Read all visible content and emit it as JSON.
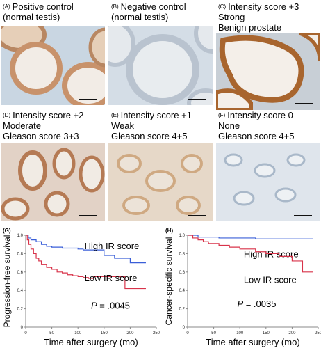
{
  "panels": [
    {
      "letter": "(A)",
      "lines": [
        "Positive control",
        "(normal testis)"
      ]
    },
    {
      "letter": "(B)",
      "lines": [
        "Negative control",
        "(normal testis)"
      ]
    },
    {
      "letter": "(C)",
      "lines": [
        "Intensity score +3",
        "Strong",
        "Benign prostate"
      ]
    },
    {
      "letter": "(D)",
      "lines": [
        "Intensity score +2",
        "Moderate",
        "Gleason score 3+3"
      ]
    },
    {
      "letter": "(E)",
      "lines": [
        "Intensity score +1",
        "Weak",
        "Gleason score 4+5"
      ]
    },
    {
      "letter": "(F)",
      "lines": [
        "Intensity score 0",
        "None",
        "Gleason score 4+5"
      ]
    }
  ],
  "chart_data": [
    {
      "type": "line",
      "panel_label": "(G)",
      "xlabel": "Time after surgery (mo)",
      "ylabel": "Progression-free survival",
      "xlim": [
        0,
        250
      ],
      "ylim": [
        0,
        1.0
      ],
      "x_ticks": [
        "0",
        "50",
        "100",
        "150",
        "200",
        "250"
      ],
      "y_ticks": [
        "0",
        "0.2",
        "0.4",
        "0.6",
        "0.8",
        "1.0"
      ],
      "annotation": {
        "prefix": "P",
        "text": " = .0045"
      },
      "series": [
        {
          "name": "High IR score",
          "color": "#3a5fd8",
          "x": [
            0,
            5,
            10,
            20,
            30,
            40,
            50,
            70,
            100,
            110,
            150,
            170,
            200,
            230
          ],
          "y": [
            1.0,
            0.97,
            0.95,
            0.93,
            0.9,
            0.88,
            0.87,
            0.86,
            0.85,
            0.84,
            0.78,
            0.75,
            0.7,
            0.7
          ]
        },
        {
          "name": "Low IR score",
          "color": "#d8334a",
          "x": [
            0,
            3,
            6,
            10,
            15,
            20,
            25,
            30,
            40,
            50,
            60,
            70,
            80,
            90,
            100,
            110,
            120,
            130,
            150,
            190,
            230
          ],
          "y": [
            1.0,
            0.95,
            0.9,
            0.85,
            0.8,
            0.75,
            0.72,
            0.68,
            0.65,
            0.63,
            0.6,
            0.59,
            0.57,
            0.56,
            0.55,
            0.54,
            0.53,
            0.55,
            0.55,
            0.42,
            0.42
          ]
        }
      ]
    },
    {
      "type": "line",
      "panel_label": "(H)",
      "xlabel": "Time after surgery (mo)",
      "ylabel": "Cancer-specific survival",
      "xlim": [
        0,
        250
      ],
      "ylim": [
        0,
        1.0
      ],
      "x_ticks": [
        "0",
        "50",
        "100",
        "150",
        "200",
        "250"
      ],
      "y_ticks": [
        "0",
        "0.2",
        "0.4",
        "0.6",
        "0.8",
        "1.0"
      ],
      "annotation": {
        "prefix": "P",
        "text": " = .0035"
      },
      "series": [
        {
          "name": "High IR score",
          "color": "#3a5fd8",
          "x": [
            0,
            20,
            60,
            130,
            240
          ],
          "y": [
            1.0,
            0.98,
            0.97,
            0.96,
            0.96
          ]
        },
        {
          "name": "Low IR score",
          "color": "#d8334a",
          "x": [
            0,
            10,
            20,
            30,
            40,
            60,
            80,
            100,
            130,
            150,
            175,
            200,
            220,
            240
          ],
          "y": [
            1.0,
            0.97,
            0.95,
            0.93,
            0.91,
            0.89,
            0.87,
            0.85,
            0.82,
            0.8,
            0.77,
            0.72,
            0.6,
            0.6
          ]
        }
      ]
    }
  ]
}
